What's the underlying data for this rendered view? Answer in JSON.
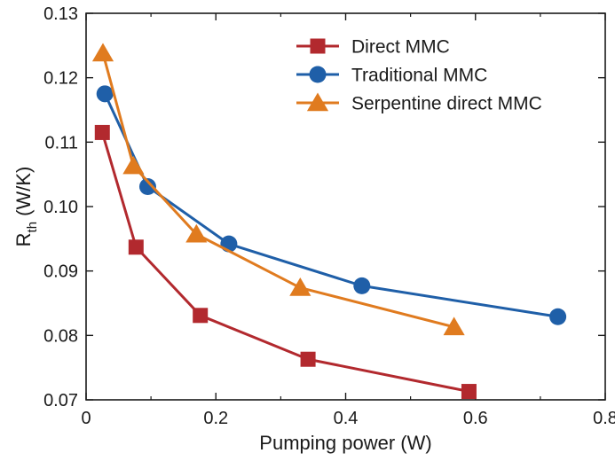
{
  "chart_data": {
    "type": "line",
    "title": "",
    "xlabel": "Pumping power (W)",
    "ylabel": {
      "main": "R",
      "sub": "th",
      "unit": " (W/K)"
    },
    "xlim": [
      0,
      0.8
    ],
    "ylim": [
      0.07,
      0.13
    ],
    "x_ticks": [
      "0",
      "0.2",
      "0.4",
      "0.6",
      "0.8"
    ],
    "x_tick_values": [
      0,
      0.2,
      0.4,
      0.6,
      0.8
    ],
    "y_ticks": [
      "0.07",
      "0.08",
      "0.09",
      "0.10",
      "0.11",
      "0.12",
      "0.13"
    ],
    "y_tick_values": [
      0.07,
      0.08,
      0.09,
      0.1,
      0.11,
      0.12,
      0.13
    ],
    "grid": false,
    "legend_position": "top-right",
    "series": [
      {
        "name": "Direct MMC",
        "color": "#b2292e",
        "marker": "square",
        "x": [
          0.025,
          0.077,
          0.176,
          0.342,
          0.59
        ],
        "y": [
          0.1115,
          0.0937,
          0.0831,
          0.0763,
          0.0713
        ]
      },
      {
        "name": "Traditional MMC",
        "color": "#1f5fa8",
        "marker": "circle",
        "x": [
          0.029,
          0.095,
          0.22,
          0.425,
          0.727
        ],
        "y": [
          0.1175,
          0.1031,
          0.0942,
          0.0877,
          0.0829
        ]
      },
      {
        "name": "Serpentine direct MMC",
        "color": "#e07b1f",
        "marker": "triangle",
        "x": [
          0.026,
          0.073,
          0.17,
          0.33,
          0.567
        ],
        "y": [
          0.1238,
          0.1063,
          0.0957,
          0.0874,
          0.0813
        ]
      }
    ]
  }
}
